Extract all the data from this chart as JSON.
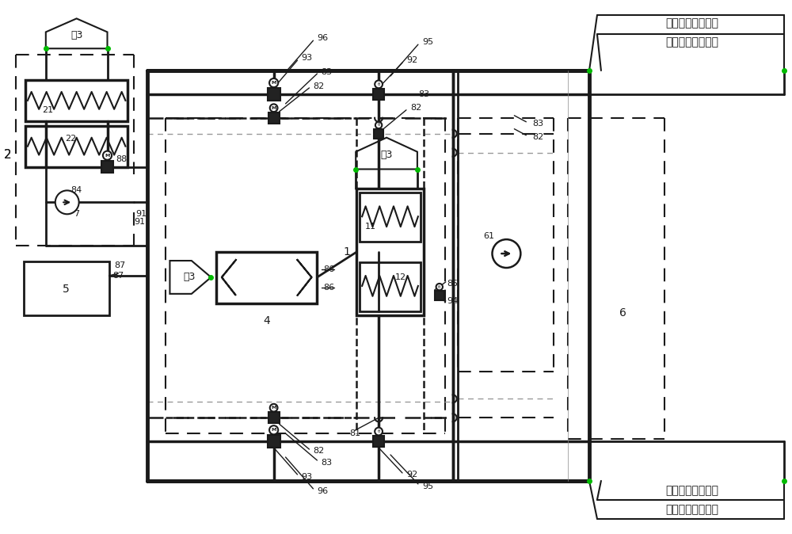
{
  "bg": "#ffffff",
  "lc": "#1a1a1a",
  "gc": "#00bb00",
  "fig_w": 10.0,
  "fig_h": 6.74,
  "labels": {
    "jie3": "接3",
    "sup_top": "接空调区末端供水",
    "ret_top": "接空调区末端回水",
    "sup_bot": "接空调区末端供水",
    "ret_bot": "接空调区末端回水",
    "n2": "2",
    "n4": "4",
    "n5": "5",
    "n6": "6",
    "n7": "7",
    "n1": "1",
    "n11": "11",
    "n12": "12",
    "n21": "21",
    "n22": "22",
    "n61": "61",
    "n81": "81",
    "n82": "82",
    "n83": "83",
    "n84": "84",
    "n85": "85",
    "n86": "86",
    "n87": "87",
    "n88": "88",
    "n91": "91",
    "n92": "92",
    "n93": "93",
    "n94": "94",
    "n95": "95",
    "n96": "96"
  }
}
